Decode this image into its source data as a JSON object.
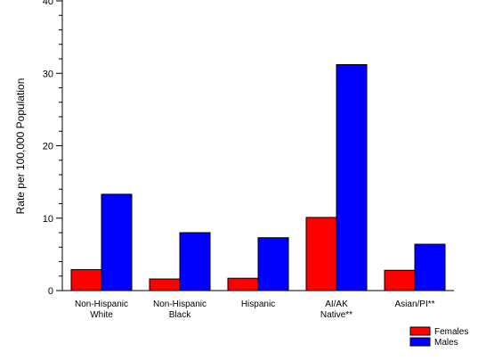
{
  "chart_data": {
    "type": "bar",
    "title": "",
    "xlabel": "",
    "ylabel": "Rate per 100,000 Population",
    "ylim": [
      0,
      40
    ],
    "yticks": [
      0,
      10,
      20,
      30,
      40
    ],
    "categories": [
      [
        "Non-Hispanic",
        "White"
      ],
      [
        "Non-Hispanic",
        "Black"
      ],
      [
        "Hispanic"
      ],
      [
        "AI/AK",
        "Native**"
      ],
      [
        "Asian/PI**"
      ]
    ],
    "series": [
      {
        "name": "Females",
        "color": "#ff0000",
        "values": [
          2.9,
          1.6,
          1.7,
          10.1,
          2.8
        ]
      },
      {
        "name": "Males",
        "color": "#0000ff",
        "values": [
          13.3,
          8.0,
          7.3,
          31.2,
          6.4
        ]
      }
    ],
    "grid": false,
    "legend_position": "bottom-right"
  }
}
